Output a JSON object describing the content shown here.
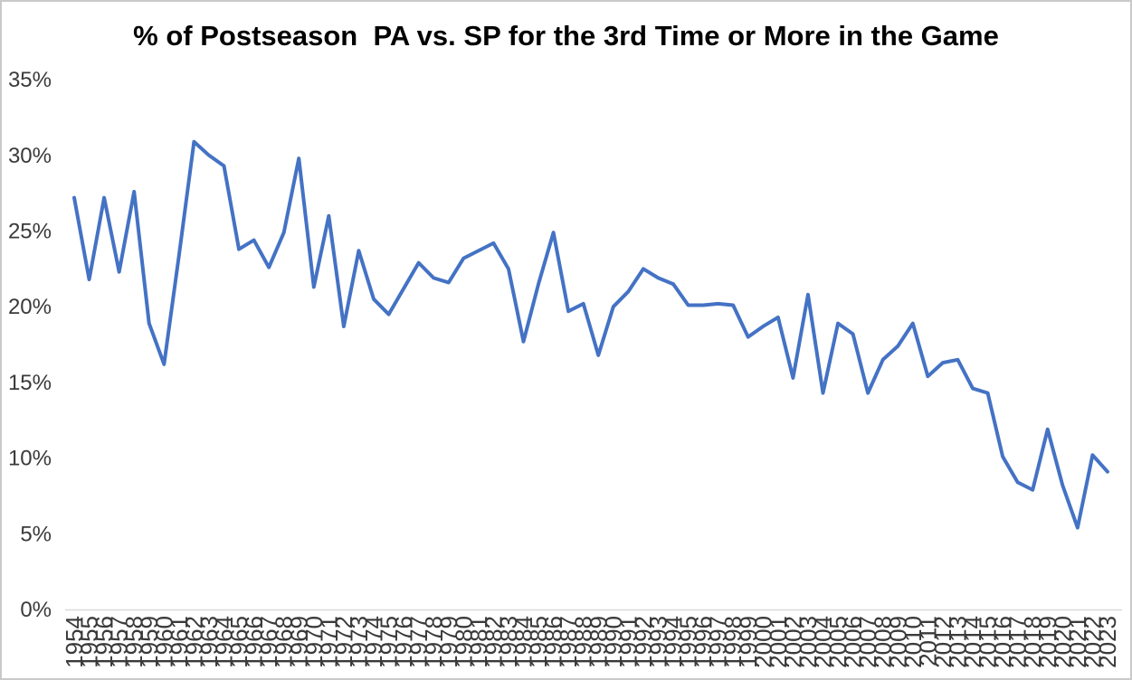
{
  "window": {
    "background": "#ffffff",
    "border_color": "#c9c9c9"
  },
  "chart_data": {
    "type": "line",
    "title": "% of Postseason  PA vs. SP for the 3rd Time or More in the Game",
    "x": [
      1954,
      1955,
      1956,
      1957,
      1958,
      1959,
      1960,
      1961,
      1962,
      1963,
      1964,
      1965,
      1966,
      1967,
      1968,
      1969,
      1970,
      1971,
      1972,
      1973,
      1974,
      1975,
      1976,
      1977,
      1978,
      1979,
      1980,
      1981,
      1982,
      1983,
      1984,
      1985,
      1986,
      1987,
      1988,
      1989,
      1990,
      1991,
      1992,
      1993,
      1994,
      1995,
      1996,
      1997,
      1998,
      1999,
      2000,
      2001,
      2002,
      2003,
      2004,
      2005,
      2006,
      2007,
      2008,
      2009,
      2010,
      2011,
      2012,
      2013,
      2014,
      2015,
      2016,
      2017,
      2018,
      2019,
      2020,
      2021,
      2022,
      2023
    ],
    "values": [
      27.2,
      21.8,
      27.2,
      22.3,
      27.6,
      18.9,
      16.2,
      23.4,
      30.9,
      30.0,
      29.3,
      23.8,
      24.4,
      22.6,
      24.9,
      29.8,
      21.3,
      26.0,
      18.7,
      23.7,
      20.5,
      19.5,
      21.2,
      22.9,
      21.9,
      21.6,
      23.2,
      23.7,
      24.2,
      22.5,
      17.7,
      21.5,
      24.9,
      19.7,
      20.2,
      16.8,
      20.0,
      21.0,
      22.5,
      21.9,
      21.5,
      20.1,
      20.1,
      20.2,
      20.1,
      18.0,
      18.7,
      19.3,
      15.3,
      20.8,
      14.3,
      18.9,
      18.2,
      14.3,
      16.5,
      17.4,
      18.9,
      15.4,
      16.3,
      16.5,
      14.6,
      14.3,
      10.1,
      8.4,
      7.9,
      11.9,
      8.2,
      5.4,
      10.2,
      9.1
    ],
    "xlabel": "",
    "ylabel": "",
    "ylim": [
      0,
      35
    ],
    "y_tick_labels": [
      "35%",
      "30%",
      "25%",
      "20%",
      "15%",
      "10%",
      "5%",
      "0%"
    ],
    "grid": "off",
    "legend": "none",
    "line_color": "#4472C4",
    "axis_line_color": "#D9D9D9",
    "tick_label_color": "#3a3a3a",
    "title_color": "#000000"
  }
}
